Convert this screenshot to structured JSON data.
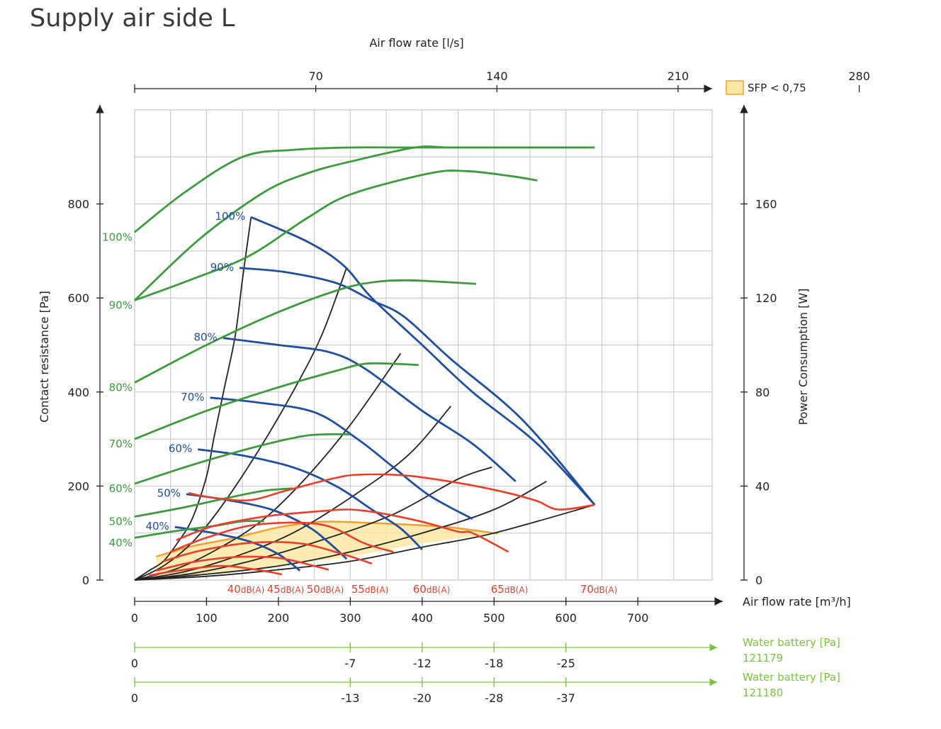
{
  "title": "Supply air side L",
  "chart_data": {
    "type": "line",
    "top_axis": {
      "label": "Air flow rate [l/s]",
      "ticks": [
        "70",
        "140",
        "210",
        "280"
      ],
      "values": [
        70,
        140,
        210,
        280
      ]
    },
    "x_axis": {
      "label": "Air flow rate [m³/h]",
      "ticks": [
        "0",
        "100",
        "200",
        "300",
        "400",
        "500",
        "600",
        "700"
      ],
      "xlim": [
        0,
        800
      ]
    },
    "left_axis": {
      "label": "Contact resistance [Pa]",
      "ticks": [
        "0",
        "200",
        "400",
        "600",
        "800"
      ],
      "ylim": [
        0,
        1000
      ]
    },
    "right_axis": {
      "label": "Power Consumption [W]",
      "ticks": [
        "0",
        "40",
        "80",
        "120",
        "160"
      ],
      "ylim": [
        0,
        200
      ]
    },
    "legend": {
      "label": "SFP < 0,75",
      "color": "#fce8a6",
      "border": "#f0a030",
      "placement": "top-right"
    },
    "colors": {
      "pressure": "#1f4e9c",
      "power": "#3e9a3e",
      "sound": "#e8402a",
      "system": "#222222",
      "battery": "#7dc23c"
    },
    "pressure_curves": [
      {
        "label": "100%",
        "points": [
          [
            162,
            772
          ],
          [
            240,
            720
          ],
          [
            290,
            670
          ],
          [
            330,
            600
          ],
          [
            400,
            500
          ],
          [
            470,
            400
          ],
          [
            560,
            290
          ],
          [
            640,
            160
          ]
        ]
      },
      {
        "label": "90%",
        "points": [
          [
            146,
            664
          ],
          [
            210,
            655
          ],
          [
            280,
            632
          ],
          [
            330,
            595
          ],
          [
            375,
            560
          ],
          [
            440,
            470
          ],
          [
            540,
            340
          ],
          [
            640,
            160
          ]
        ]
      },
      {
        "label": "80%",
        "points": [
          [
            123,
            515
          ],
          [
            200,
            500
          ],
          [
            270,
            485
          ],
          [
            320,
            450
          ],
          [
            400,
            360
          ],
          [
            470,
            290
          ],
          [
            530,
            210
          ]
        ]
      },
      {
        "label": "70%",
        "points": [
          [
            105,
            388
          ],
          [
            170,
            378
          ],
          [
            250,
            357
          ],
          [
            310,
            300
          ],
          [
            360,
            240
          ],
          [
            410,
            180
          ],
          [
            470,
            130
          ]
        ]
      },
      {
        "label": "60%",
        "points": [
          [
            88,
            278
          ],
          [
            150,
            265
          ],
          [
            220,
            240
          ],
          [
            280,
            200
          ],
          [
            330,
            150
          ],
          [
            370,
            110
          ],
          [
            400,
            65
          ]
        ]
      },
      {
        "label": "50%",
        "points": [
          [
            72,
            183
          ],
          [
            130,
            170
          ],
          [
            190,
            150
          ],
          [
            240,
            115
          ],
          [
            270,
            80
          ],
          [
            295,
            45
          ]
        ]
      },
      {
        "label": "40%",
        "points": [
          [
            56,
            113
          ],
          [
            110,
            100
          ],
          [
            160,
            82
          ],
          [
            200,
            55
          ],
          [
            230,
            20
          ]
        ]
      }
    ],
    "power_curves": [
      {
        "label": "100%",
        "points": [
          [
            0,
            148
          ],
          [
            70,
            165
          ],
          [
            150,
            180
          ],
          [
            220,
            183
          ],
          [
            300,
            184
          ],
          [
            380,
            184
          ],
          [
            480,
            184
          ],
          [
            600,
            184
          ],
          [
            640,
            184
          ]
        ]
      },
      {
        "label": "",
        "points": [
          [
            0,
            119
          ],
          [
            90,
            145
          ],
          [
            180,
            165
          ],
          [
            240,
            173
          ],
          [
            300,
            178
          ],
          [
            390,
            184
          ],
          [
            440,
            184
          ],
          [
            560,
            184
          ],
          [
            640,
            184
          ]
        ]
      },
      {
        "label": "90%",
        "points": [
          [
            0,
            119
          ],
          [
            80,
            128
          ],
          [
            160,
            138
          ],
          [
            240,
            154
          ],
          [
            300,
            164
          ],
          [
            410,
            173
          ],
          [
            460,
            174
          ],
          [
            520,
            172
          ],
          [
            560,
            170
          ]
        ]
      },
      {
        "label": "80%",
        "points": [
          [
            0,
            84
          ],
          [
            100,
            100
          ],
          [
            200,
            114
          ],
          [
            290,
            124
          ],
          [
            340,
            127
          ],
          [
            380,
            127.5
          ],
          [
            420,
            127
          ],
          [
            475,
            126
          ]
        ]
      },
      {
        "label": "70%",
        "points": [
          [
            0,
            60
          ],
          [
            100,
            72
          ],
          [
            200,
            82
          ],
          [
            280,
            89
          ],
          [
            320,
            92
          ],
          [
            360,
            92
          ],
          [
            395,
            91.5
          ]
        ]
      },
      {
        "label": "60%",
        "points": [
          [
            0,
            41
          ],
          [
            80,
            49
          ],
          [
            160,
            56
          ],
          [
            230,
            61
          ],
          [
            265,
            62
          ],
          [
            300,
            62
          ]
        ]
      },
      {
        "label": "50%",
        "points": [
          [
            0,
            27
          ],
          [
            70,
            31
          ],
          [
            130,
            35
          ],
          [
            180,
            38
          ],
          [
            220,
            39
          ]
        ]
      },
      {
        "label": "40%",
        "points": [
          [
            0,
            18
          ],
          [
            60,
            21
          ],
          [
            110,
            23
          ],
          [
            150,
            25
          ],
          [
            180,
            25
          ]
        ]
      }
    ],
    "sound_curves": [
      {
        "label": "40dB(A)",
        "points": [
          [
            20,
            10
          ],
          [
            60,
            20
          ],
          [
            120,
            30
          ],
          [
            170,
            22
          ],
          [
            205,
            12
          ]
        ]
      },
      {
        "label": "45dB(A)",
        "points": [
          [
            30,
            20
          ],
          [
            80,
            38
          ],
          [
            140,
            49
          ],
          [
            200,
            47
          ],
          [
            250,
            30
          ],
          [
            270,
            22
          ]
        ]
      },
      {
        "label": "50dB(A)",
        "points": [
          [
            40,
            40
          ],
          [
            90,
            62
          ],
          [
            160,
            79
          ],
          [
            230,
            78
          ],
          [
            290,
            55
          ],
          [
            330,
            35
          ]
        ]
      },
      {
        "label": "55dB(A)",
        "points": [
          [
            50,
            60
          ],
          [
            100,
            90
          ],
          [
            170,
            118
          ],
          [
            260,
            118
          ],
          [
            320,
            78
          ],
          [
            360,
            60
          ]
        ]
      },
      {
        "label": "60dB(A)",
        "points": [
          [
            58,
            85
          ],
          [
            110,
            115
          ],
          [
            180,
            135
          ],
          [
            230,
            143
          ],
          [
            270,
            148
          ],
          [
            300,
            150
          ],
          [
            340,
            143
          ],
          [
            400,
            124
          ],
          [
            450,
            103
          ],
          [
            470,
            100
          ],
          [
            520,
            60
          ]
        ]
      },
      {
        "label": "65dB(A)",
        "points": [
          [
            75,
            185
          ],
          [
            110,
            175
          ],
          [
            160,
            170
          ],
          [
            210,
            190
          ],
          [
            270,
            214
          ],
          [
            310,
            224
          ],
          [
            380,
            222
          ],
          [
            460,
            204
          ],
          [
            520,
            185
          ],
          [
            560,
            168
          ],
          [
            590,
            150
          ],
          [
            640,
            160
          ]
        ]
      },
      {
        "label": "70dB(A)",
        "points": []
      }
    ],
    "system_curves": [
      [
        [
          0,
          0
        ],
        [
          20,
          20
        ],
        [
          40,
          40
        ],
        [
          60,
          80
        ],
        [
          80,
          130
        ],
        [
          100,
          220
        ],
        [
          110,
          300
        ],
        [
          125,
          410
        ],
        [
          140,
          520
        ],
        [
          150,
          640
        ],
        [
          162,
          772
        ]
      ],
      [
        [
          0,
          0
        ],
        [
          40,
          30
        ],
        [
          80,
          80
        ],
        [
          120,
          155
        ],
        [
          170,
          270
        ],
        [
          220,
          400
        ],
        [
          260,
          520
        ],
        [
          295,
          665
        ]
      ],
      [
        [
          0,
          0
        ],
        [
          60,
          25
        ],
        [
          120,
          70
        ],
        [
          180,
          130
        ],
        [
          240,
          220
        ],
        [
          300,
          330
        ],
        [
          360,
          460
        ],
        [
          370,
          482
        ]
      ],
      [
        [
          0,
          0
        ],
        [
          70,
          18
        ],
        [
          140,
          50
        ],
        [
          220,
          100
        ],
        [
          300,
          175
        ],
        [
          380,
          265
        ],
        [
          440,
          370
        ]
      ],
      [
        [
          0,
          0
        ],
        [
          80,
          14
        ],
        [
          160,
          40
        ],
        [
          260,
          85
        ],
        [
          360,
          140
        ],
        [
          450,
          215
        ],
        [
          497,
          240
        ]
      ],
      [
        [
          0,
          0
        ],
        [
          90,
          11
        ],
        [
          200,
          30
        ],
        [
          300,
          60
        ],
        [
          400,
          100
        ],
        [
          500,
          150
        ],
        [
          573,
          210
        ]
      ],
      [
        [
          0,
          0
        ],
        [
          100,
          8
        ],
        [
          200,
          22
        ],
        [
          300,
          40
        ],
        [
          400,
          70
        ],
        [
          500,
          100
        ],
        [
          640,
          160
        ]
      ]
    ],
    "sfp_region": [
      [
        30,
        50
      ],
      [
        80,
        72
      ],
      [
        140,
        90
      ],
      [
        200,
        112
      ],
      [
        260,
        124
      ],
      [
        320,
        122
      ],
      [
        380,
        118
      ],
      [
        440,
        112
      ],
      [
        500,
        100
      ],
      [
        500,
        100
      ],
      [
        400,
        78
      ],
      [
        300,
        50
      ],
      [
        200,
        30
      ],
      [
        100,
        12
      ],
      [
        30,
        3
      ]
    ],
    "water_battery_121179": {
      "label": "Water battery [Pa]",
      "id": "121179",
      "ticks": [
        "0",
        "-7",
        "-12",
        "-18",
        "-25"
      ],
      "tick_flow": [
        0,
        300,
        400,
        500,
        600
      ]
    },
    "water_battery_121180": {
      "label": "Water battery [Pa]",
      "id": "121180",
      "ticks": [
        "0",
        "-13",
        "-20",
        "-28",
        "-37"
      ],
      "tick_flow": [
        0,
        300,
        400,
        500,
        600
      ]
    }
  }
}
